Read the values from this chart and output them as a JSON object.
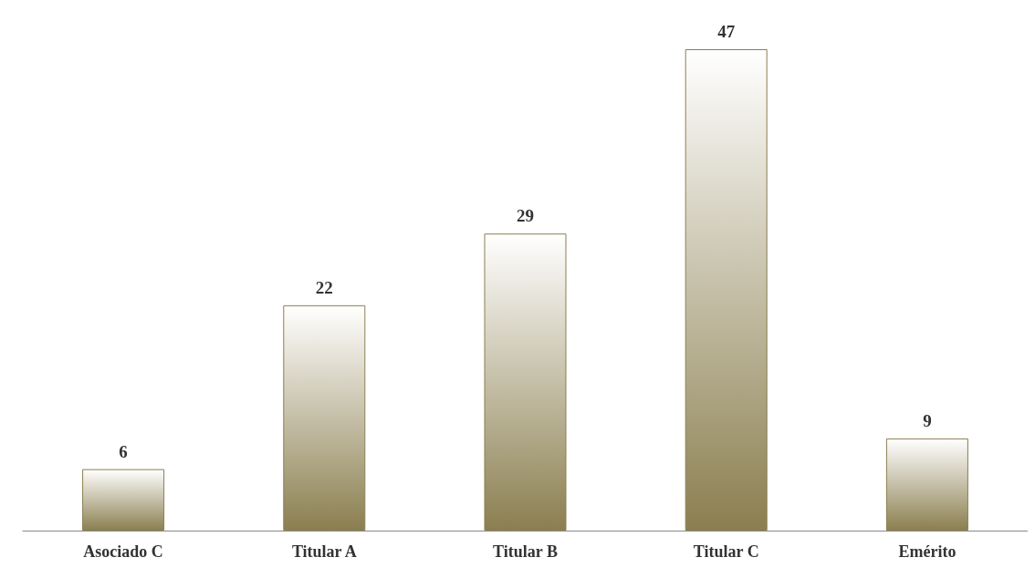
{
  "chart_data": {
    "type": "bar",
    "categories": [
      "Asociado C",
      "Titular A",
      "Titular B",
      "Titular C",
      "Emérito"
    ],
    "values": [
      6,
      22,
      29,
      47,
      9
    ],
    "color": "#8b7f50",
    "data_labels": true
  }
}
